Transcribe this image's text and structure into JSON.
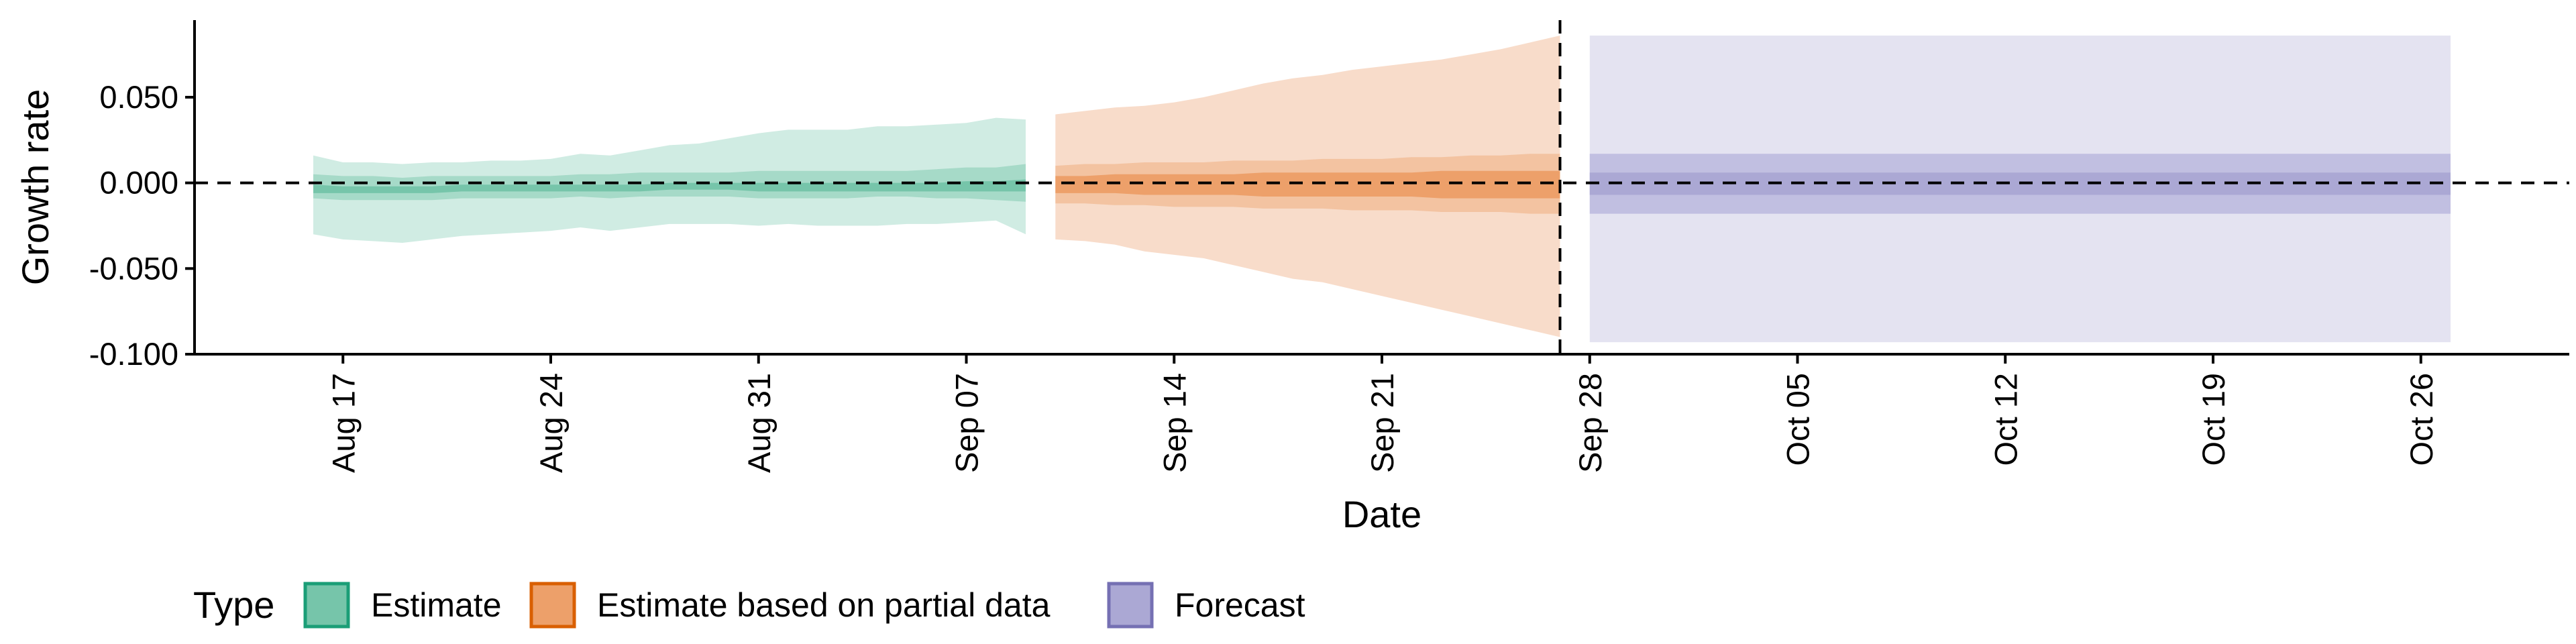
{
  "chart_data": {
    "type": "area",
    "title": "",
    "xlabel": "Date",
    "ylabel": "Growth rate",
    "xlim": [
      "2020-08-12",
      "2020-10-31"
    ],
    "ylim": [
      -0.1,
      0.095
    ],
    "y_ticks": [
      0.05,
      0.0,
      -0.05,
      -0.1
    ],
    "y_tick_labels": [
      "0.050",
      "0.000",
      "-0.050",
      "-0.100"
    ],
    "x_ticks": [
      "2020-08-17",
      "2020-08-24",
      "2020-08-31",
      "2020-09-07",
      "2020-09-14",
      "2020-09-21",
      "2020-09-28",
      "2020-10-05",
      "2020-10-12",
      "2020-10-19",
      "2020-10-26"
    ],
    "x_tick_labels": [
      "Aug 17",
      "Aug 24",
      "Aug 31",
      "Sep 07",
      "Sep 14",
      "Sep 21",
      "Sep 28",
      "Oct 05",
      "Oct 12",
      "Oct 19",
      "Oct 26"
    ],
    "reference_lines": {
      "horizontal_y": 0.0,
      "vertical_x": "2020-09-27"
    },
    "grid": false,
    "legend": {
      "title": "Type",
      "placement": "bottom-left",
      "entries": [
        {
          "label": "Estimate",
          "fill": "#76c5aa",
          "border": "#1b9e77"
        },
        {
          "label": "Estimate based on partial data",
          "fill": "#eda06a",
          "border": "#d95f02"
        },
        {
          "label": "Forecast",
          "fill": "#aba8d4",
          "border": "#7570b3"
        }
      ]
    },
    "series": [
      {
        "name": "Estimate",
        "colors": {
          "outer": "#d0ece3",
          "middle": "#a6dac8",
          "inner": "#76c5aa"
        },
        "x": [
          "2020-08-16",
          "2020-08-17",
          "2020-08-18",
          "2020-08-19",
          "2020-08-20",
          "2020-08-21",
          "2020-08-22",
          "2020-08-23",
          "2020-08-24",
          "2020-08-25",
          "2020-08-26",
          "2020-08-27",
          "2020-08-28",
          "2020-08-29",
          "2020-08-30",
          "2020-08-31",
          "2020-09-01",
          "2020-09-02",
          "2020-09-03",
          "2020-09-04",
          "2020-09-05",
          "2020-09-06",
          "2020-09-07",
          "2020-09-08",
          "2020-09-09"
        ],
        "outer_lower": [
          -0.03,
          -0.033,
          -0.034,
          -0.035,
          -0.033,
          -0.031,
          -0.03,
          -0.029,
          -0.028,
          -0.026,
          -0.028,
          -0.026,
          -0.024,
          -0.024,
          -0.024,
          -0.025,
          -0.024,
          -0.025,
          -0.025,
          -0.025,
          -0.024,
          -0.024,
          -0.023,
          -0.022,
          -0.03
        ],
        "outer_upper": [
          0.016,
          0.012,
          0.012,
          0.011,
          0.012,
          0.012,
          0.013,
          0.013,
          0.014,
          0.017,
          0.016,
          0.019,
          0.022,
          0.023,
          0.026,
          0.029,
          0.031,
          0.031,
          0.031,
          0.033,
          0.033,
          0.034,
          0.035,
          0.038,
          0.037
        ],
        "middle_lower": [
          -0.009,
          -0.01,
          -0.01,
          -0.01,
          -0.01,
          -0.009,
          -0.009,
          -0.009,
          -0.009,
          -0.008,
          -0.009,
          -0.008,
          -0.008,
          -0.008,
          -0.008,
          -0.009,
          -0.009,
          -0.009,
          -0.009,
          -0.008,
          -0.008,
          -0.009,
          -0.009,
          -0.01,
          -0.011
        ],
        "middle_upper": [
          0.005,
          0.004,
          0.004,
          0.003,
          0.004,
          0.004,
          0.004,
          0.004,
          0.004,
          0.005,
          0.005,
          0.006,
          0.006,
          0.006,
          0.006,
          0.007,
          0.007,
          0.007,
          0.007,
          0.007,
          0.007,
          0.008,
          0.009,
          0.009,
          0.011
        ],
        "inner_lower": [
          -0.006,
          -0.006,
          -0.006,
          -0.006,
          -0.006,
          -0.005,
          -0.005,
          -0.005,
          -0.005,
          -0.005,
          -0.005,
          -0.005,
          -0.004,
          -0.004,
          -0.004,
          -0.005,
          -0.005,
          -0.005,
          -0.005,
          -0.005,
          -0.005,
          -0.005,
          -0.005,
          -0.005,
          -0.005
        ],
        "inner_upper": [
          -0.001,
          -0.002,
          -0.002,
          -0.002,
          -0.002,
          -0.001,
          -0.001,
          -0.001,
          -0.001,
          -0.001,
          -0.001,
          -0.001,
          0.0,
          0.0,
          0.0,
          0.0,
          0.0,
          0.0,
          0.0,
          0.0,
          0.0,
          0.0,
          0.001,
          0.001,
          0.002
        ]
      },
      {
        "name": "Estimate based on partial data",
        "colors": {
          "outer": "#f8dcca",
          "middle": "#f3c3a1",
          "inner": "#eda06a"
        },
        "x": [
          "2020-09-10",
          "2020-09-11",
          "2020-09-12",
          "2020-09-13",
          "2020-09-14",
          "2020-09-15",
          "2020-09-16",
          "2020-09-17",
          "2020-09-18",
          "2020-09-19",
          "2020-09-20",
          "2020-09-21",
          "2020-09-22",
          "2020-09-23",
          "2020-09-24",
          "2020-09-25",
          "2020-09-26",
          "2020-09-27"
        ],
        "outer_lower": [
          -0.033,
          -0.034,
          -0.036,
          -0.04,
          -0.042,
          -0.044,
          -0.048,
          -0.052,
          -0.056,
          -0.058,
          -0.062,
          -0.066,
          -0.07,
          -0.074,
          -0.078,
          -0.082,
          -0.086,
          -0.09
        ],
        "outer_upper": [
          0.04,
          0.042,
          0.044,
          0.045,
          0.047,
          0.05,
          0.054,
          0.058,
          0.061,
          0.063,
          0.066,
          0.068,
          0.07,
          0.072,
          0.075,
          0.078,
          0.082,
          0.086
        ],
        "middle_lower": [
          -0.012,
          -0.012,
          -0.013,
          -0.013,
          -0.014,
          -0.014,
          -0.014,
          -0.015,
          -0.015,
          -0.015,
          -0.016,
          -0.016,
          -0.016,
          -0.017,
          -0.017,
          -0.017,
          -0.018,
          -0.018
        ],
        "middle_upper": [
          0.01,
          0.011,
          0.011,
          0.012,
          0.012,
          0.012,
          0.013,
          0.013,
          0.013,
          0.014,
          0.014,
          0.014,
          0.015,
          0.015,
          0.016,
          0.016,
          0.017,
          0.017
        ],
        "inner_lower": [
          -0.006,
          -0.006,
          -0.006,
          -0.007,
          -0.007,
          -0.007,
          -0.007,
          -0.008,
          -0.008,
          -0.008,
          -0.008,
          -0.008,
          -0.008,
          -0.009,
          -0.009,
          -0.009,
          -0.009,
          -0.009
        ],
        "inner_upper": [
          0.004,
          0.004,
          0.005,
          0.005,
          0.005,
          0.005,
          0.005,
          0.006,
          0.006,
          0.006,
          0.006,
          0.006,
          0.006,
          0.007,
          0.007,
          0.007,
          0.007,
          0.007
        ]
      },
      {
        "name": "Forecast",
        "colors": {
          "outer": "#e4e3f1",
          "middle": "#c1bfe1",
          "inner": "#aba8d4"
        },
        "x": [
          "2020-09-28",
          "2020-10-27"
        ],
        "outer_lower": [
          -0.093,
          -0.093
        ],
        "outer_upper": [
          0.086,
          0.086
        ],
        "middle_lower": [
          -0.018,
          -0.018
        ],
        "middle_upper": [
          0.017,
          0.017
        ],
        "inner_lower": [
          -0.007,
          -0.007
        ],
        "inner_upper": [
          0.006,
          0.006
        ]
      }
    ]
  }
}
